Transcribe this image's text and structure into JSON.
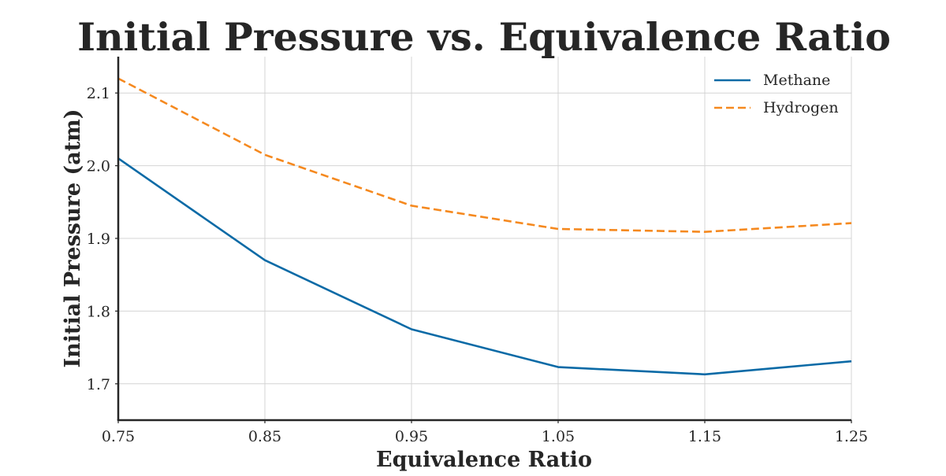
{
  "chart_data": {
    "type": "line",
    "title": "Initial Pressure vs. Equivalence Ratio",
    "xlabel": "Equivalence Ratio",
    "ylabel": "Initial Pressure (atm)",
    "x": [
      0.75,
      0.85,
      0.95,
      1.05,
      1.15,
      1.25
    ],
    "x_tick_labels": [
      "0.75",
      "0.85",
      "0.95",
      "1.05",
      "1.15",
      "1.25"
    ],
    "xlim": [
      0.75,
      1.25
    ],
    "y_ticks": [
      1.7,
      1.8,
      1.9,
      2.0,
      2.1
    ],
    "y_tick_labels": [
      "1.7",
      "1.8",
      "1.9",
      "2.0",
      "2.1"
    ],
    "ylim": [
      1.65,
      2.15
    ],
    "grid": true,
    "legend_position": "top-right",
    "series": [
      {
        "name": "Methane",
        "values": [
          2.01,
          1.87,
          1.775,
          1.723,
          1.713,
          1.731
        ],
        "color": "#0a6aa6",
        "style": "solid"
      },
      {
        "name": "Hydrogen",
        "values": [
          2.12,
          2.015,
          1.945,
          1.913,
          1.909,
          1.921
        ],
        "color": "#f5891f",
        "style": "dashed"
      }
    ]
  }
}
